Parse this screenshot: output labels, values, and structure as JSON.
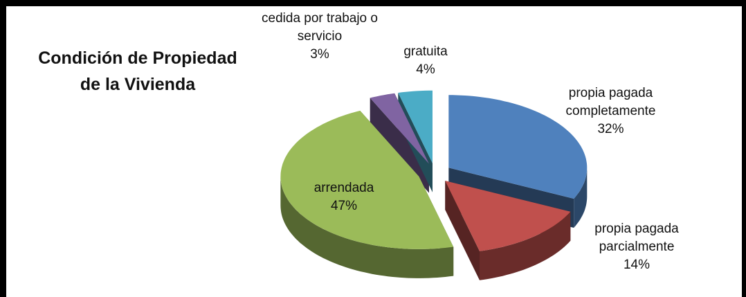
{
  "chart_data": {
    "type": "pie3d",
    "title": "Condición de Propiedad de la Vivienda",
    "categories": [
      "propia pagada completamente",
      "propia pagada parcialmente",
      "arrendada",
      "cedida por trabajo o servicio",
      "gratuita"
    ],
    "values": [
      32,
      14,
      47,
      3,
      4
    ],
    "value_labels": [
      "32%",
      "14%",
      "47%",
      "3%",
      "4%"
    ],
    "colors": [
      "#4f81bd",
      "#c0504d",
      "#9bbb59",
      "#8064a2",
      "#4bacc6"
    ]
  }
}
